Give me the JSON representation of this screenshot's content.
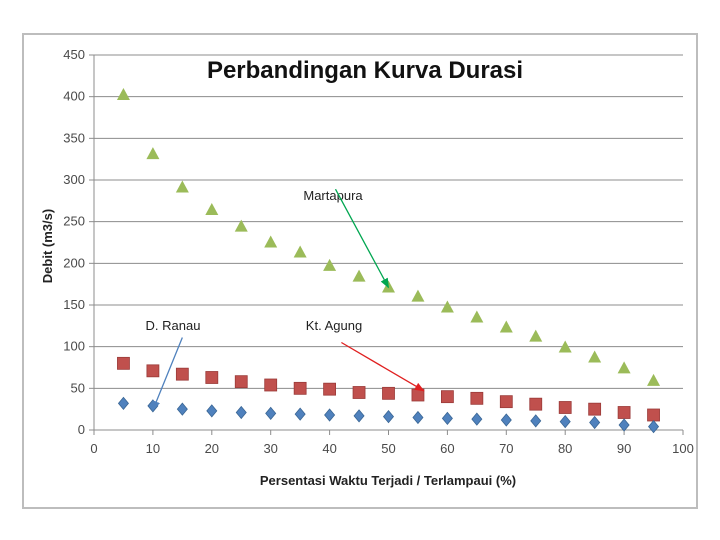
{
  "chart_data": {
    "type": "scatter",
    "title": "Perbandingan Kurva Durasi",
    "xlabel": "Persentasi Waktu Terjadi / Terlampaui (%)",
    "ylabel": "Debit (m3/s)",
    "xlim": [
      0,
      100
    ],
    "ylim": [
      0,
      450
    ],
    "xticks": [
      0,
      10,
      20,
      30,
      40,
      50,
      60,
      70,
      80,
      90,
      100
    ],
    "yticks": [
      0,
      50,
      100,
      150,
      200,
      250,
      300,
      350,
      400,
      450
    ],
    "grid": "horizontal",
    "x": [
      5,
      10,
      15,
      20,
      25,
      30,
      35,
      40,
      45,
      50,
      55,
      60,
      65,
      70,
      75,
      80,
      85,
      90,
      95
    ],
    "series": [
      {
        "marker": "triangle",
        "color": "#9BBB59",
        "values": [
          402,
          331,
          291,
          264,
          244,
          225,
          213,
          197,
          184,
          171,
          160,
          147,
          135,
          123,
          112,
          99,
          87,
          74,
          59
        ]
      },
      {
        "marker": "square",
        "color": "#C0504D",
        "values": [
          80,
          71,
          67,
          63,
          58,
          54,
          50,
          49,
          45,
          44,
          42,
          40,
          38,
          34,
          31,
          27,
          25,
          21,
          18
        ]
      },
      {
        "marker": "diamond",
        "color": "#4F81BD",
        "values": [
          32,
          29,
          25,
          23,
          21,
          20,
          19,
          18,
          17,
          16,
          15,
          14,
          13,
          12,
          11,
          10,
          9,
          6,
          4
        ]
      }
    ],
    "annotations": [
      {
        "text": "Martapura",
        "color": "#00A650",
        "from": [
          41,
          289
        ],
        "to": [
          50,
          171
        ]
      },
      {
        "text": "D. Ranau",
        "color": "#4F81BD",
        "from": [
          15,
          111
        ],
        "to": [
          10,
          24
        ]
      },
      {
        "text": "Kt. Agung",
        "color": "#E02020",
        "from": [
          42,
          105
        ],
        "to": [
          56,
          47
        ]
      }
    ]
  }
}
